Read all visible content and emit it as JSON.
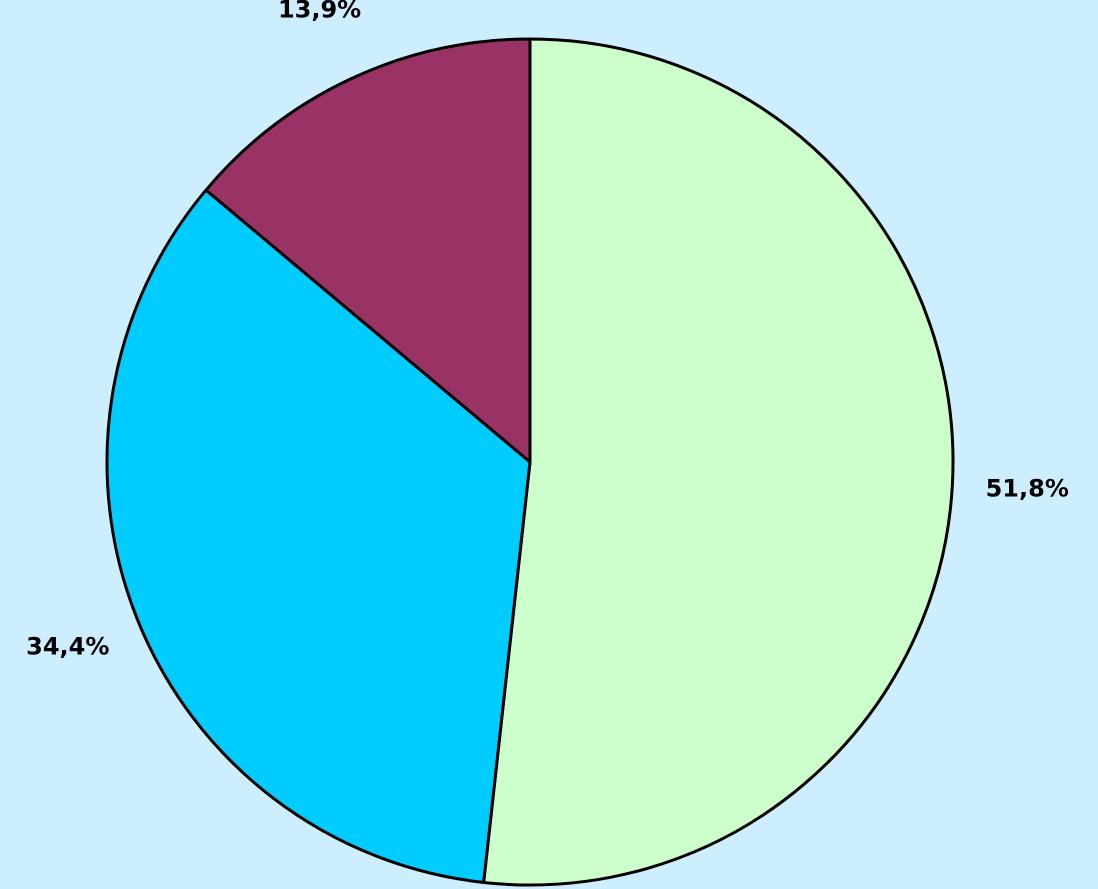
{
  "chart_data": {
    "type": "pie",
    "values": [
      51.8,
      34.4,
      13.9
    ],
    "value_labels": [
      "51,8%",
      "34,4%",
      "13,9%"
    ],
    "colors": [
      "#ccffcc",
      "#00ccff",
      "#993366"
    ]
  }
}
